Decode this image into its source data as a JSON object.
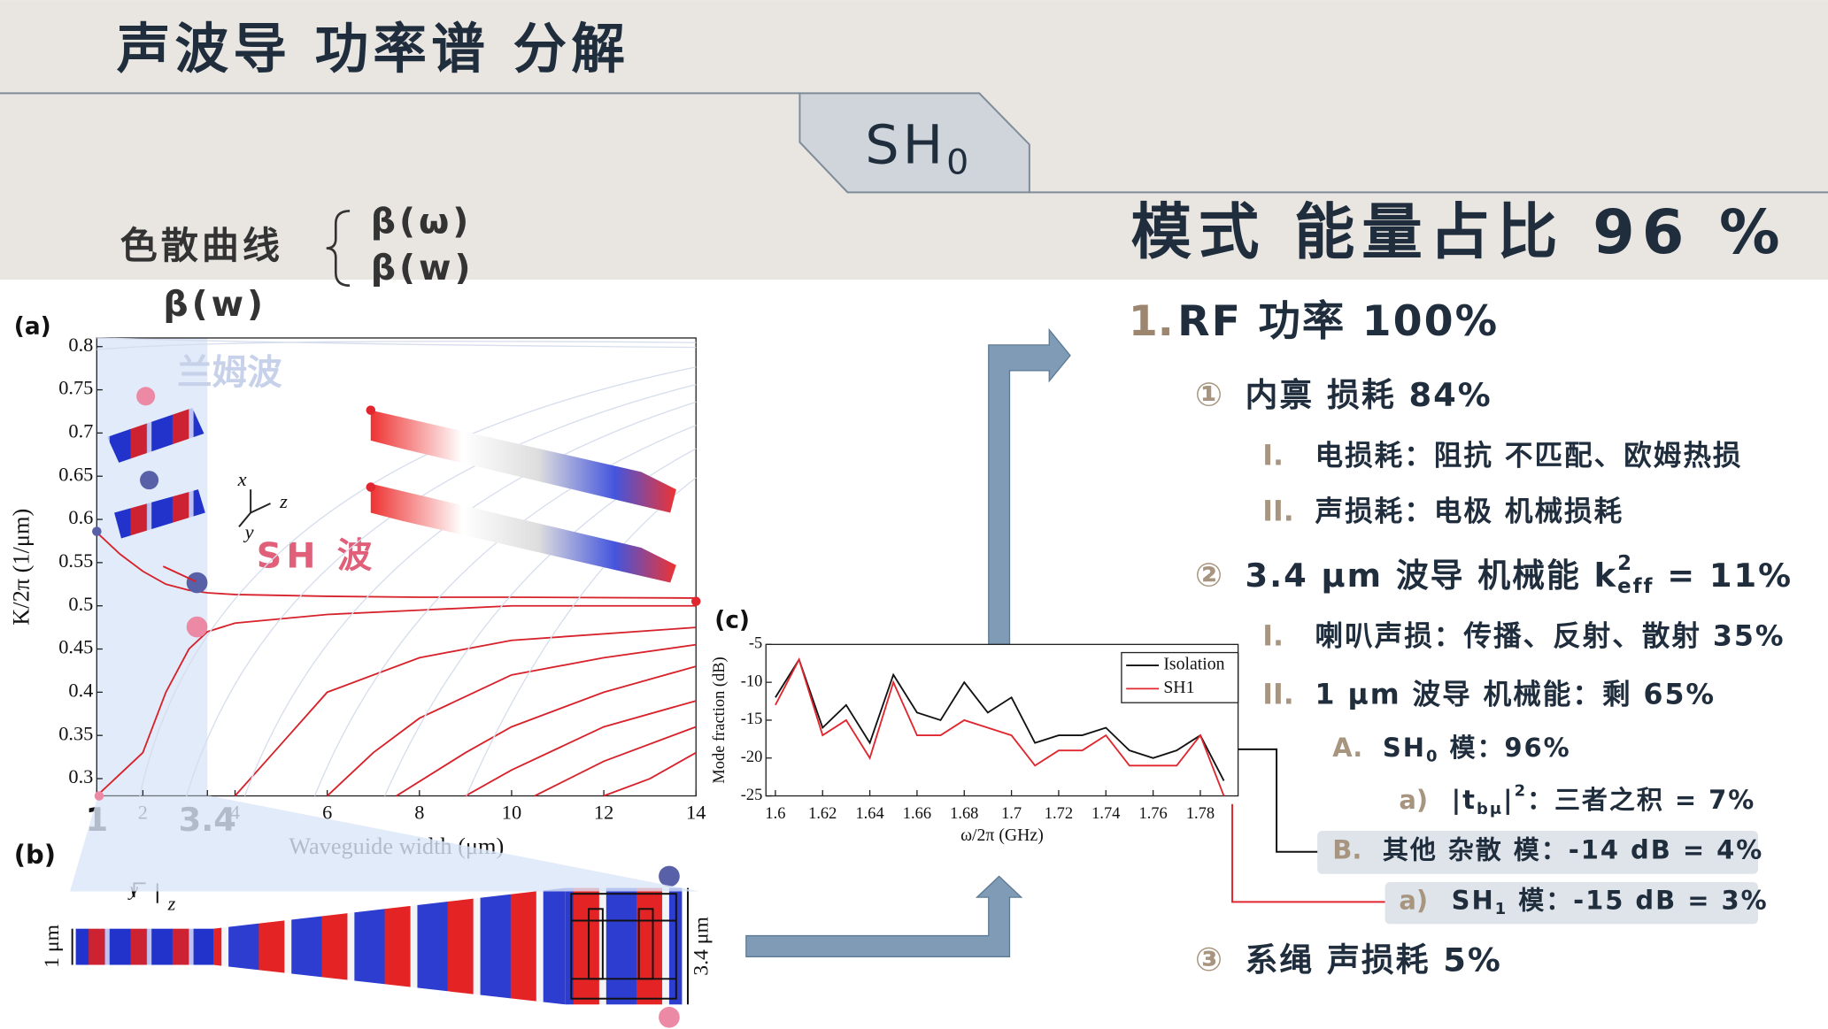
{
  "header": {
    "title": "声波导 功率谱 分解"
  },
  "tab": {
    "label": "SH",
    "subscript": "0"
  },
  "left": {
    "heading": "色散曲线",
    "brace": [
      "β(ω)",
      "β(w)"
    ],
    "subheading": "β(w)"
  },
  "summary": {
    "heading": "模式 能量占比 96 %"
  },
  "outline": [
    {
      "marker": "1.",
      "parts": [
        {
          "text": "RF 功率 100%"
        }
      ]
    },
    {
      "marker": "①",
      "parts": [
        {
          "text": "内禀 损耗 84%"
        }
      ]
    },
    {
      "marker": "I.",
      "parts": [
        {
          "text": "电损耗：阻抗 不匹配、欧姆热损"
        }
      ]
    },
    {
      "marker": "II.",
      "parts": [
        {
          "text": "声损耗：电极 机械损耗"
        }
      ]
    },
    {
      "marker": "②",
      "parts": [
        {
          "text": "3.4 μm 波导 机械能 k"
        },
        {
          "sup": "2",
          "sub": "eff"
        },
        {
          "text": " = 11%"
        }
      ]
    },
    {
      "marker": "I.",
      "parts": [
        {
          "text": "喇叭声损：传播、反射、散射 35%"
        }
      ]
    },
    {
      "marker": "II.",
      "parts": [
        {
          "text": "1 μm 波导 机械能：剩 65%"
        }
      ]
    },
    {
      "marker": "A.",
      "parts": [
        {
          "text": "SH"
        },
        {
          "sub": "0"
        },
        {
          "text": " 模：96%"
        }
      ]
    },
    {
      "marker": "a)",
      "parts": [
        {
          "text": "|t"
        },
        {
          "sub": "bμ"
        },
        {
          "text": "|"
        },
        {
          "sup": "2"
        },
        {
          "text": "：三者之积 = 7%"
        }
      ]
    },
    {
      "marker": "B.",
      "parts": [
        {
          "text": "其他 杂散 模：-14 dB = 4%"
        }
      ]
    },
    {
      "marker": "a)",
      "parts": [
        {
          "text": "SH"
        },
        {
          "sub": "1"
        },
        {
          "text": " 模：-15 dB = 3%"
        }
      ]
    },
    {
      "marker": "③",
      "parts": [
        {
          "text": "系绳 声损耗 5%"
        }
      ]
    }
  ],
  "figure_b": {
    "label": "(b)",
    "width_small": "1 μm",
    "width_large": "3.4 μm",
    "axis_y": "y",
    "axis_z": "z"
  },
  "chart_data": [
    {
      "type": "line",
      "panel": "(a)",
      "xlabel": "Waveguide width (μm)",
      "ylabel": "K/2π (1/μm)",
      "annotations": [
        "兰姆波",
        "SH 波"
      ],
      "triad": [
        "x",
        "z",
        "y"
      ],
      "xlim": [
        1,
        14
      ],
      "ylim": [
        0.28,
        0.81
      ],
      "xticks": [
        1,
        2,
        3.4,
        4,
        6,
        8,
        10,
        12,
        14
      ],
      "yticks": [
        0.3,
        0.35,
        0.4,
        0.45,
        0.5,
        0.55,
        0.6,
        0.65,
        0.7,
        0.75,
        0.8
      ],
      "series": [
        {
          "color": "#d7222b",
          "x": [
            1,
            1.5,
            2,
            2.5,
            3,
            3.4,
            4,
            6,
            8,
            10,
            14
          ],
          "values": [
            0.585,
            0.56,
            0.54,
            0.525,
            0.518,
            0.515,
            0.513,
            0.511,
            0.51,
            0.51,
            0.509
          ]
        },
        {
          "color": "#d7222b",
          "x": [
            1,
            2,
            2.5,
            3,
            3.4,
            4,
            6,
            8,
            10,
            14
          ],
          "values": [
            0.28,
            0.33,
            0.4,
            0.45,
            0.47,
            0.48,
            0.49,
            0.495,
            0.5,
            0.5
          ]
        },
        {
          "color": "#d7222b",
          "x": [
            4,
            5,
            6,
            8,
            10,
            14
          ],
          "values": [
            0.28,
            0.34,
            0.4,
            0.44,
            0.46,
            0.475
          ]
        },
        {
          "color": "#d7222b",
          "x": [
            6,
            7,
            8,
            10,
            12,
            14
          ],
          "values": [
            0.28,
            0.33,
            0.37,
            0.42,
            0.44,
            0.455
          ]
        },
        {
          "color": "#d7222b",
          "x": [
            7.5,
            9,
            10,
            12,
            14
          ],
          "values": [
            0.28,
            0.33,
            0.36,
            0.4,
            0.43
          ]
        },
        {
          "color": "#d7222b",
          "x": [
            9,
            10,
            12,
            14
          ],
          "values": [
            0.28,
            0.31,
            0.36,
            0.39
          ]
        },
        {
          "color": "#d7222b",
          "x": [
            10.5,
            12,
            14
          ],
          "values": [
            0.28,
            0.32,
            0.36
          ]
        },
        {
          "color": "#d7222b",
          "x": [
            12,
            13,
            14
          ],
          "values": [
            0.28,
            0.3,
            0.33
          ]
        }
      ]
    },
    {
      "type": "line",
      "panel": "(c)",
      "xlabel": "ω/2π (GHz)",
      "ylabel": "Mode fraction (dB)",
      "xlim": [
        1.596,
        1.796
      ],
      "ylim": [
        -25,
        -5
      ],
      "xticks": [
        1.6,
        1.62,
        1.64,
        1.66,
        1.68,
        1.7,
        1.72,
        1.74,
        1.76,
        1.78
      ],
      "yticks": [
        -5,
        -10,
        -15,
        -20,
        -25
      ],
      "x": [
        1.6,
        1.61,
        1.62,
        1.63,
        1.64,
        1.65,
        1.66,
        1.67,
        1.68,
        1.69,
        1.7,
        1.71,
        1.72,
        1.73,
        1.74,
        1.75,
        1.76,
        1.77,
        1.78,
        1.79
      ],
      "series": [
        {
          "name": "Isolation",
          "color": "#111111",
          "values": [
            -12,
            -7,
            -16,
            -13,
            -18,
            -9,
            -14,
            -15,
            -10,
            -14,
            -12,
            -18,
            -17,
            -17,
            -16,
            -19,
            -20,
            -19,
            -17,
            -23
          ]
        },
        {
          "name": "SH1",
          "color": "#e0262e",
          "values": [
            -13,
            -7,
            -17,
            -15,
            -20,
            -10,
            -17,
            -17,
            -15,
            -16,
            -17,
            -21,
            -19,
            -19,
            -17,
            -21,
            -21,
            -21,
            -17,
            -25
          ]
        }
      ]
    }
  ]
}
